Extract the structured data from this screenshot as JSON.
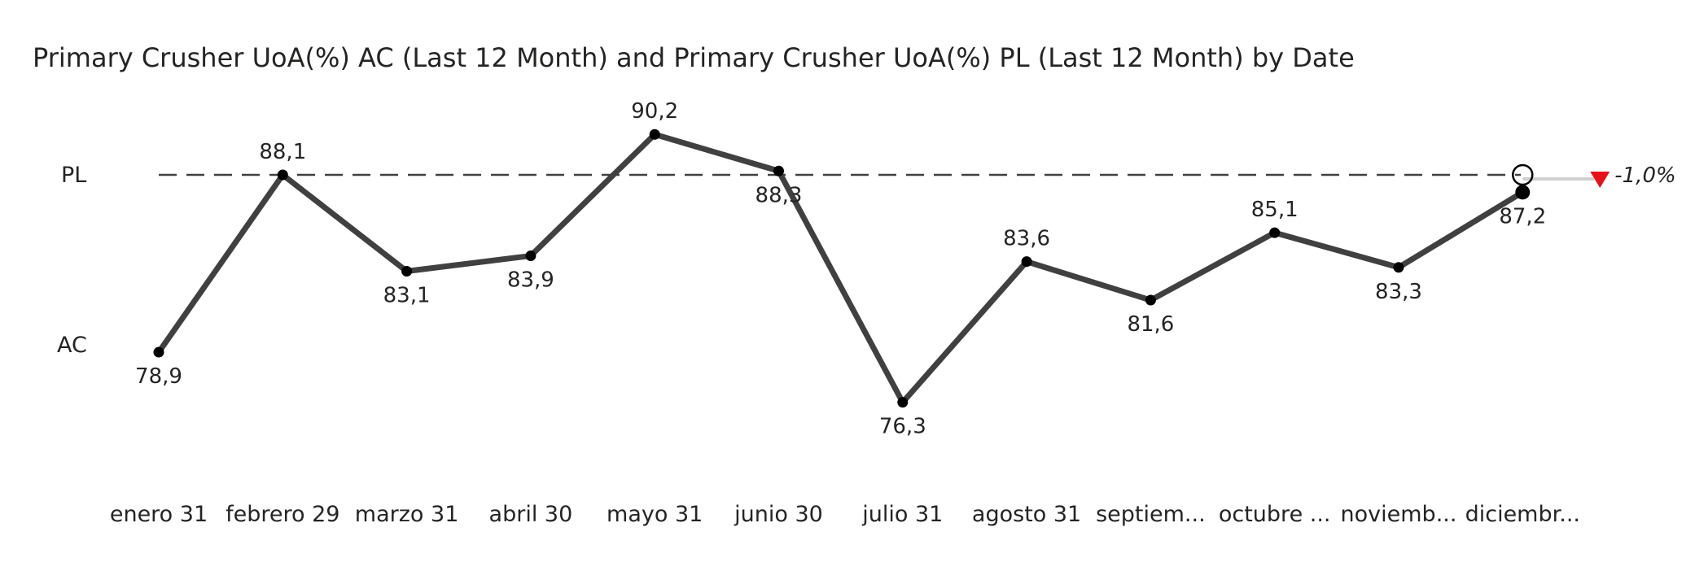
{
  "chart_data": {
    "type": "line",
    "title": "Primary Crusher UoA(%) AC (Last 12 Month) and Primary Crusher UoA(%) PL (Last 12 Month) by Date",
    "categories": [
      "enero 31",
      "febrero 29",
      "marzo 31",
      "abril 30",
      "mayo 31",
      "junio 30",
      "julio 31",
      "agosto 31",
      "septiem...",
      "octubre ...",
      "noviemb...",
      "diciembr..."
    ],
    "series": [
      {
        "name": "AC",
        "values": [
          78.9,
          88.1,
          83.1,
          83.9,
          90.2,
          88.3,
          76.3,
          83.6,
          81.6,
          85.1,
          83.3,
          87.2
        ],
        "labels": [
          "78,9",
          "88,1",
          "83,1",
          "83,9",
          "90,2",
          "88,3",
          "76,3",
          "83,6",
          "81,6",
          "85,1",
          "83,3",
          "87,2"
        ],
        "style": "solid",
        "color": "#404040"
      },
      {
        "name": "PL",
        "value": 88.1,
        "style": "dashed",
        "color": "#404040"
      }
    ],
    "variance": {
      "label": "-1,0%",
      "direction": "down",
      "color": "#e8111b"
    },
    "ylim": [
      70,
      95
    ],
    "grid": false,
    "legend": "none"
  }
}
